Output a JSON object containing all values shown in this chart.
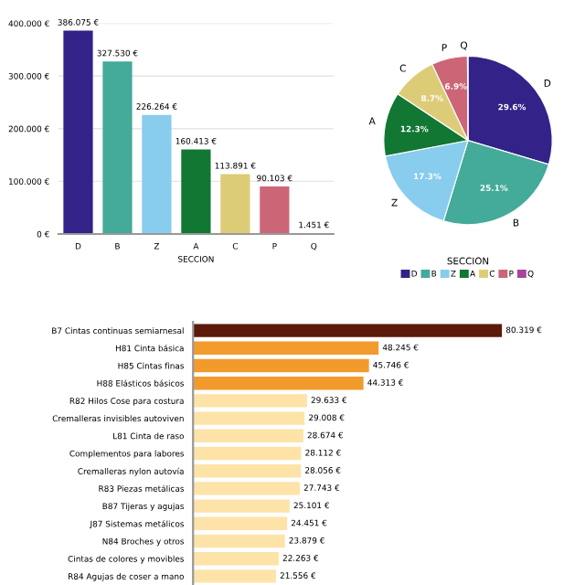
{
  "chart_data": [
    {
      "type": "bar",
      "xlabel": "SECCION",
      "categories": [
        "D",
        "B",
        "Z",
        "A",
        "C",
        "P",
        "Q"
      ],
      "values": [
        386.075,
        327.53,
        226.264,
        160.413,
        113.891,
        90.103,
        1.451
      ],
      "colors": [
        "#332288",
        "#44aa99",
        "#88ccee",
        "#117733",
        "#ddcc77",
        "#cc6677",
        "#aa4499"
      ],
      "value_labels": [
        "386.075 €",
        "327.530 €",
        "226.264 €",
        "160.413 €",
        "113.891 €",
        "90.103 €",
        "1.451 €"
      ],
      "ylim": [
        0,
        400
      ],
      "yticks": [
        {
          "value": 0,
          "label": "0 €"
        },
        {
          "value": 100,
          "label": "100.000 €"
        },
        {
          "value": 200,
          "label": "200.000 €"
        },
        {
          "value": 300,
          "label": "300.000 €"
        },
        {
          "value": 400,
          "label": "400.000 €"
        }
      ],
      "grid": "y"
    },
    {
      "type": "pie",
      "legend_title": "SECCION",
      "legend": "bottom",
      "categories": [
        "D",
        "B",
        "Z",
        "A",
        "C",
        "P",
        "Q"
      ],
      "values": [
        29.6,
        25.1,
        17.3,
        12.3,
        8.7,
        6.9,
        0.1
      ],
      "colors": [
        "#332288",
        "#44aa99",
        "#88ccee",
        "#117733",
        "#ddcc77",
        "#cc6677",
        "#aa4499"
      ],
      "value_labels": [
        "29.6%",
        "25.1%",
        "17.3%",
        "12.3%",
        "8.7%",
        "6.9%",
        null
      ]
    },
    {
      "type": "bar",
      "orientation": "horizontal",
      "categories": [
        "B7 Cintas continuas semiarnesal",
        "H81 Cinta básica",
        "H85 Cintas finas",
        "H88 Elásticos básicos",
        "R82 Hilos Cose para costura",
        "Cremalleras invisibles autoviven",
        "L81 Cinta de raso",
        "Complementos para labores",
        "Cremalleras nylon autovía",
        "R83 Piezas metálicas",
        "B87 Tijeras y agujas",
        "J87 Sistemas metálicos",
        "N84 Broches y otros",
        "Cintas de colores y movibles",
        "R84 Agujas de coser a mano"
      ],
      "values": [
        80.319,
        48.245,
        45.746,
        44.313,
        29.633,
        29.008,
        28.674,
        28.112,
        28.056,
        27.743,
        25.101,
        24.451,
        23.879,
        22.263,
        21.556
      ],
      "colors": [
        "#5c1a0a",
        "#f39a2c",
        "#f39a2c",
        "#f39a2c",
        "#fde3a7",
        "#fde3a7",
        "#fde3a7",
        "#fde3a7",
        "#fde3a7",
        "#fde3a7",
        "#fde3a7",
        "#fde3a7",
        "#fde3a7",
        "#fde3a7",
        "#fde3a7"
      ],
      "value_labels": [
        "80.319 €",
        "48.245 €",
        "45.746 €",
        "44.313 €",
        "29.633 €",
        "29.008 €",
        "28.674 €",
        "28.112 €",
        "28.056 €",
        "27.743 €",
        "25.101 €",
        "24.451 €",
        "23.879 €",
        "22.263 €",
        "21.556 €"
      ],
      "tick_labels": "y"
    }
  ]
}
